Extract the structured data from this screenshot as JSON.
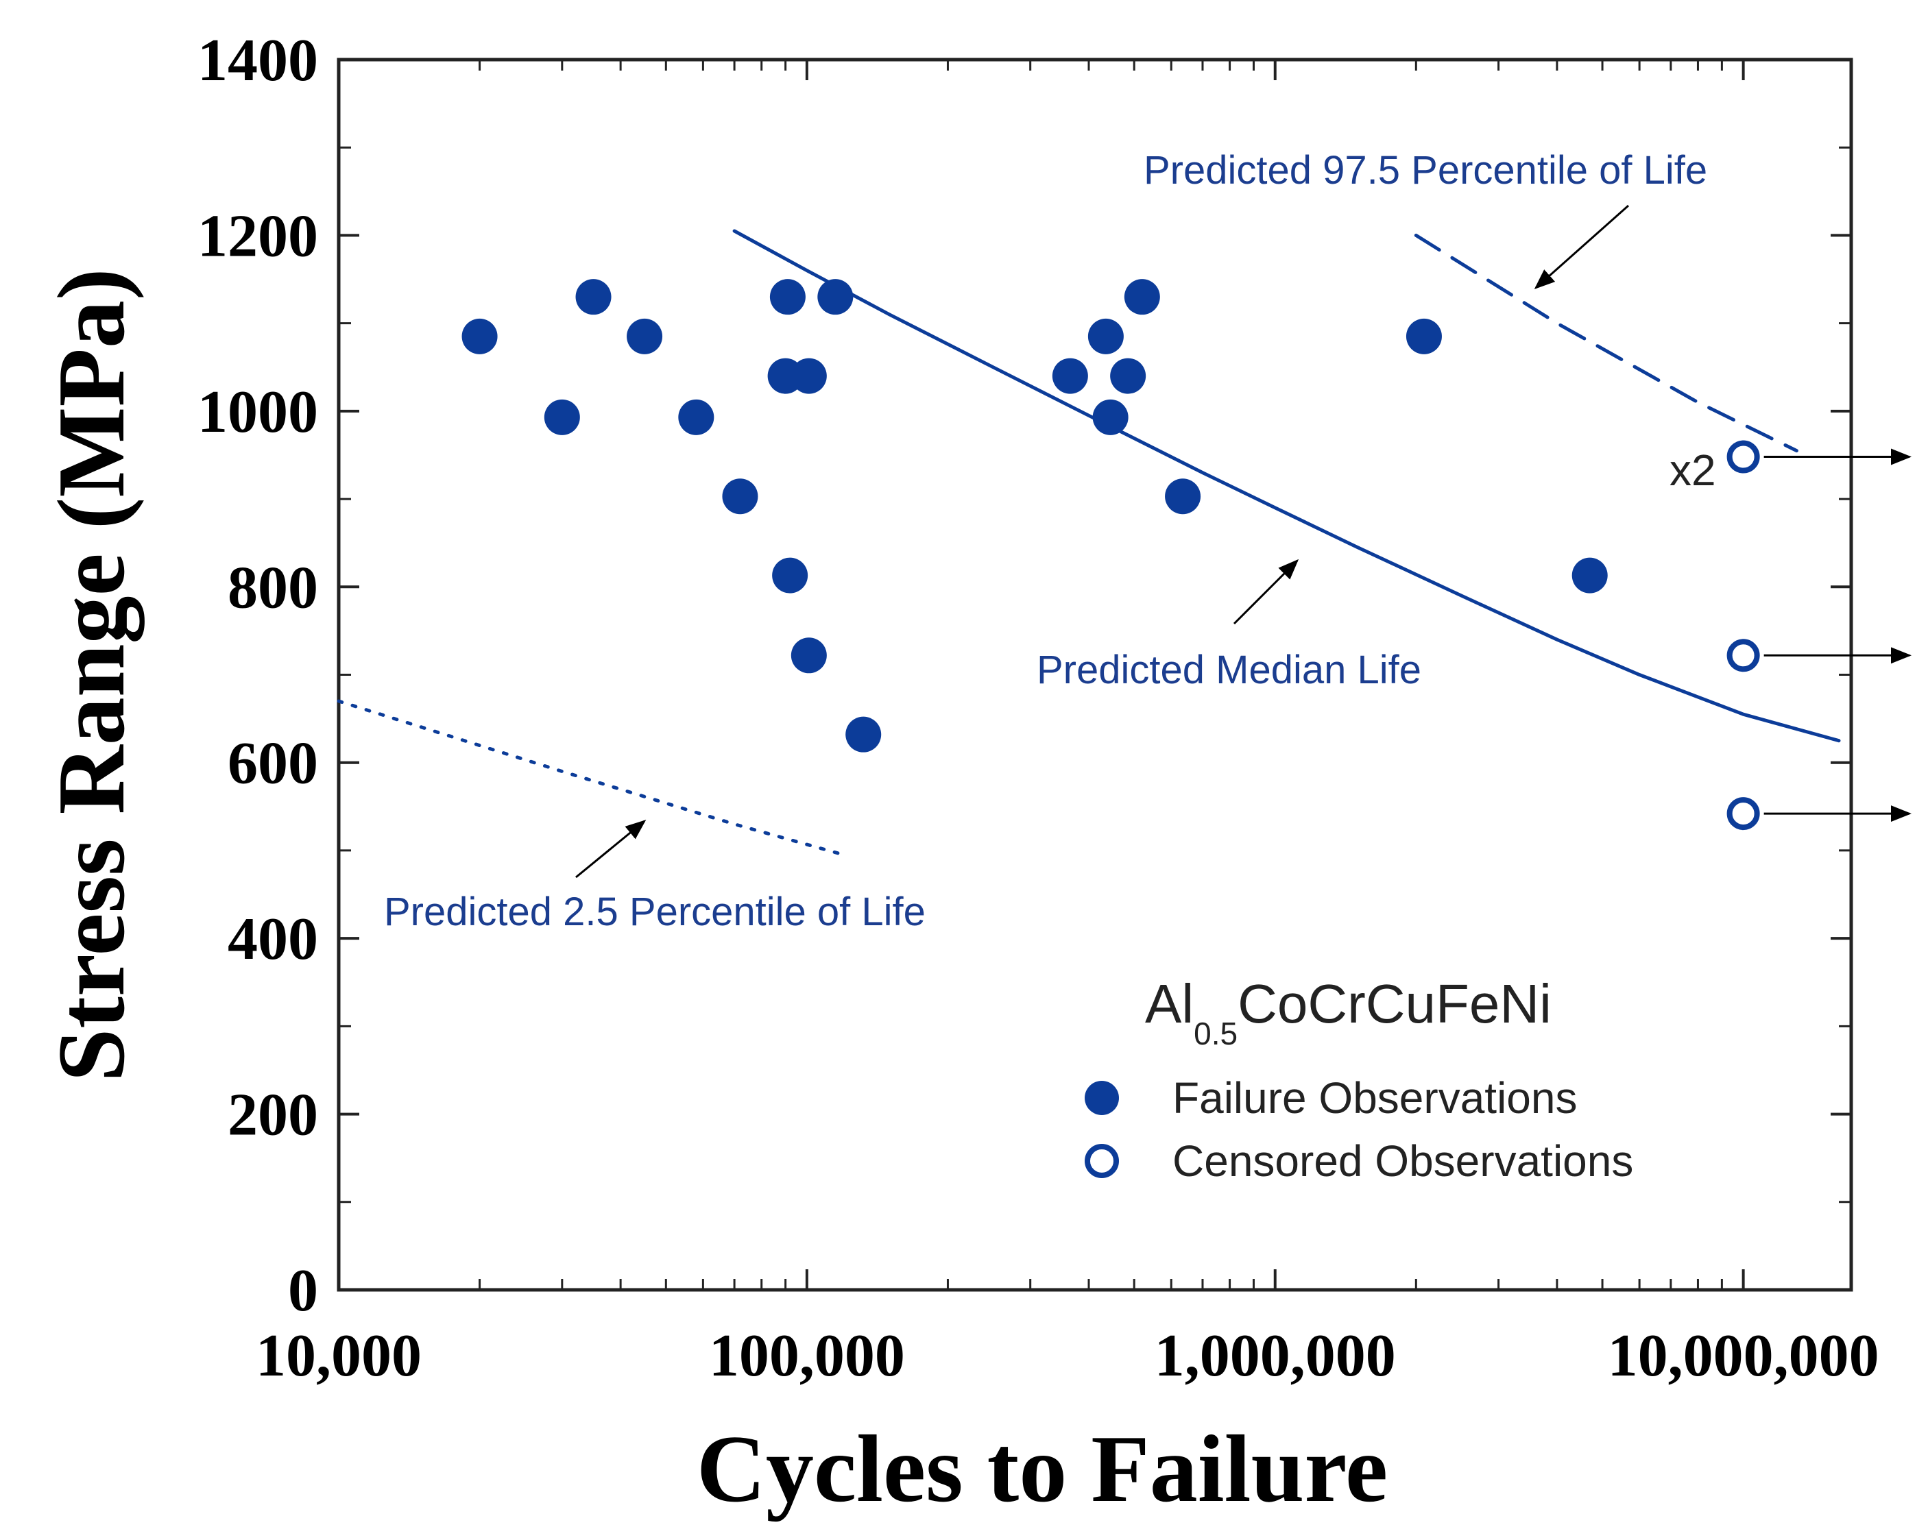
{
  "chart_data": {
    "type": "scatter",
    "xlabel": "Cycles to Failure",
    "ylabel": "Stress Range (MPa)",
    "x_scale": "log",
    "xlim": [
      10000,
      17000000
    ],
    "ylim": [
      0,
      1400
    ],
    "x_ticks": [
      10000,
      100000,
      1000000,
      10000000
    ],
    "x_tick_labels": [
      "10,000",
      "100,000",
      "1,000,000",
      "10,000,000"
    ],
    "y_ticks": [
      0,
      200,
      400,
      600,
      800,
      1000,
      1200,
      1400
    ],
    "y_tick_labels": [
      "0",
      "200",
      "400",
      "600",
      "800",
      "1000",
      "1200",
      "1400"
    ],
    "series": [
      {
        "name": "Failure Observations",
        "marker": "filled-circle",
        "color": "#0c3c99",
        "points": [
          {
            "x": 20000,
            "y": 1085
          },
          {
            "x": 30000,
            "y": 993
          },
          {
            "x": 35000,
            "y": 1130
          },
          {
            "x": 45000,
            "y": 1085
          },
          {
            "x": 58000,
            "y": 993
          },
          {
            "x": 72000,
            "y": 903
          },
          {
            "x": 91000,
            "y": 1130
          },
          {
            "x": 90000,
            "y": 1040
          },
          {
            "x": 101000,
            "y": 1040
          },
          {
            "x": 92000,
            "y": 813
          },
          {
            "x": 101000,
            "y": 722
          },
          {
            "x": 115000,
            "y": 1130
          },
          {
            "x": 132000,
            "y": 632
          },
          {
            "x": 365000,
            "y": 1040
          },
          {
            "x": 435000,
            "y": 1085
          },
          {
            "x": 445000,
            "y": 993
          },
          {
            "x": 485000,
            "y": 1040
          },
          {
            "x": 520000,
            "y": 1130
          },
          {
            "x": 635000,
            "y": 903
          },
          {
            "x": 2080000,
            "y": 1085
          },
          {
            "x": 4700000,
            "y": 813
          }
        ]
      },
      {
        "name": "Censored Observations",
        "marker": "open-circle",
        "color": "#0c3c99",
        "points": [
          {
            "x": 10000000,
            "y": 948
          },
          {
            "x": 10000000,
            "y": 722
          },
          {
            "x": 10000000,
            "y": 542
          }
        ]
      }
    ],
    "curves": [
      {
        "name": "Predicted Median Life",
        "style": "solid",
        "points": [
          {
            "x": 70000,
            "y": 1205
          },
          {
            "x": 100000,
            "y": 1160
          },
          {
            "x": 150000,
            "y": 1110
          },
          {
            "x": 250000,
            "y": 1050
          },
          {
            "x": 400000,
            "y": 995
          },
          {
            "x": 700000,
            "y": 930
          },
          {
            "x": 1000000,
            "y": 890
          },
          {
            "x": 1500000,
            "y": 845
          },
          {
            "x": 2500000,
            "y": 790
          },
          {
            "x": 4000000,
            "y": 740
          },
          {
            "x": 6000000,
            "y": 700
          },
          {
            "x": 10000000,
            "y": 655
          },
          {
            "x": 16000000,
            "y": 625
          }
        ]
      },
      {
        "name": "Predicted 97.5 Percentile of Life",
        "style": "dashed",
        "points": [
          {
            "x": 2000000,
            "y": 1200
          },
          {
            "x": 4000000,
            "y": 1100
          },
          {
            "x": 8000000,
            "y": 1010
          },
          {
            "x": 13000000,
            "y": 955
          }
        ]
      },
      {
        "name": "Predicted 2.5 Percentile of Life",
        "style": "dotted",
        "points": [
          {
            "x": 10000,
            "y": 670
          },
          {
            "x": 30000,
            "y": 590
          },
          {
            "x": 70000,
            "y": 530
          },
          {
            "x": 120000,
            "y": 495
          }
        ]
      }
    ],
    "annotations": {
      "p975": "Predicted 97.5 Percentile of Life",
      "median": "Predicted Median Life",
      "p25": "Predicted 2.5 Percentile of Life",
      "x2": "x2"
    },
    "legend": {
      "title_main": "Al",
      "title_sub": "0.5",
      "title_rest": "CoCrCuFeNi",
      "entries": [
        "Failure Observations",
        "Censored Observations"
      ],
      "position": "bottom-right"
    }
  }
}
